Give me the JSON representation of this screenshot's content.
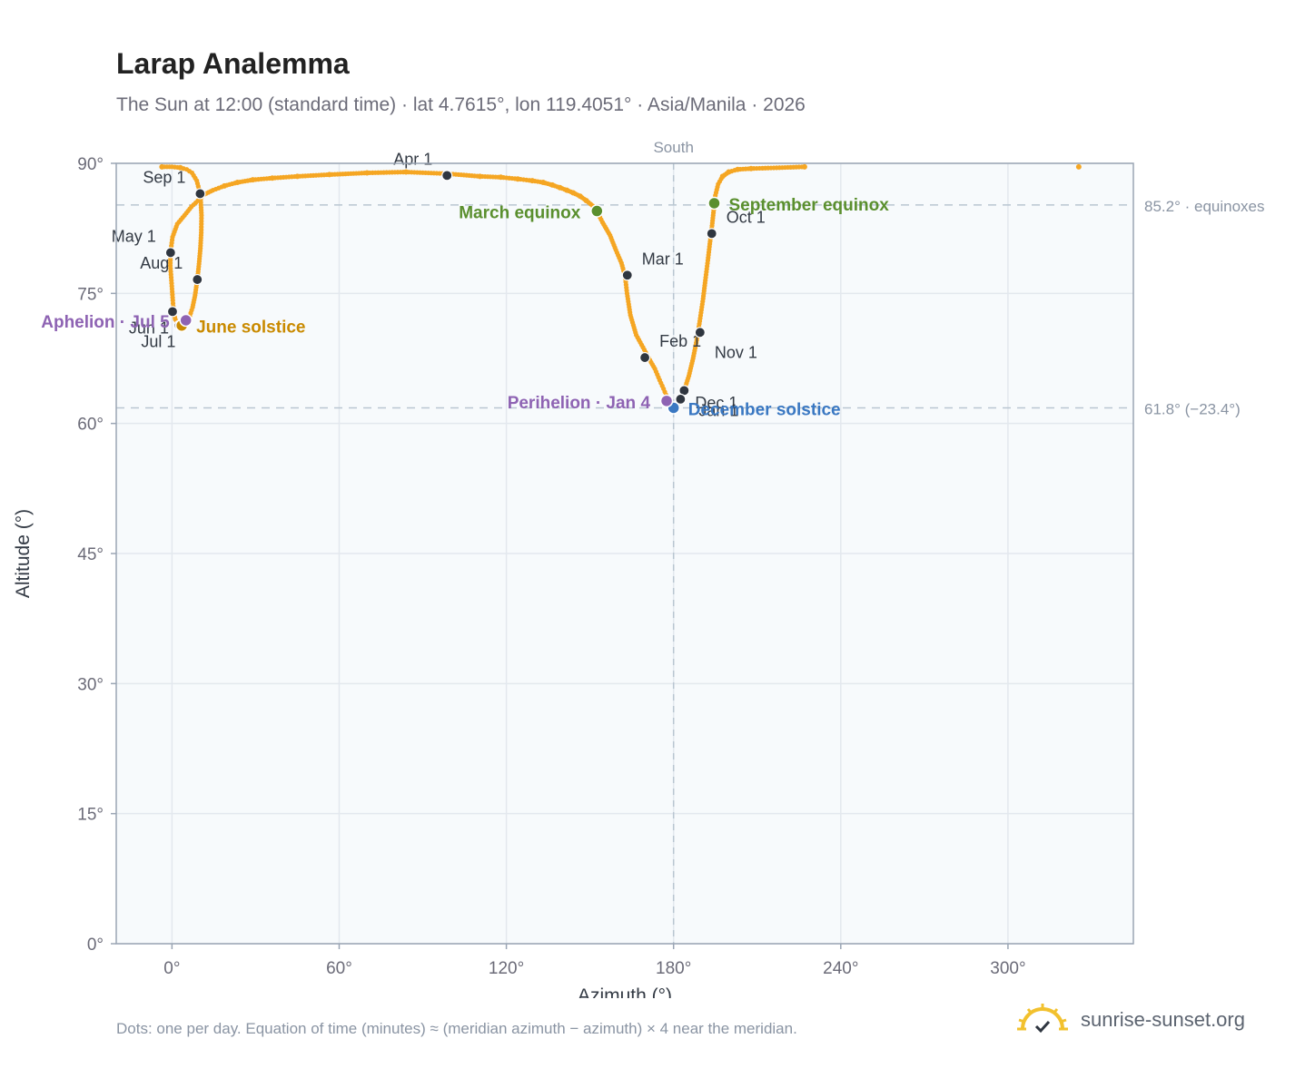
{
  "title": "Larap Analemma",
  "subtitle": "The Sun at 12:00 (standard time) · lat 4.7615°, lon 119.4051° · Asia/Manila · 2026",
  "footnote": "Dots: one per day. Equation of time (minutes) ≈ (meridian azimuth − azimuth) × 4 near the meridian.",
  "brand": {
    "name": "sunrise-sunset.org",
    "icon": "sun-check-icon"
  },
  "colors": {
    "analemma": "#f5a623",
    "month_marker": "#2f3640",
    "equinox": "#5a8f2e",
    "june_solstice": "#c98a00",
    "december_solstice": "#3a78c2",
    "apsis": "#8e63b3",
    "plot_bg": "#f7fafc",
    "grid": "#e3e8ee",
    "reference_line": "#b9c6d1"
  },
  "chart_data": {
    "type": "scatter",
    "xlabel": "Azimuth (°)",
    "ylabel": "Altitude (°)",
    "xlim": [
      -20,
      345
    ],
    "ylim": [
      0,
      90
    ],
    "xticks": [
      0,
      60,
      120,
      180,
      240,
      300
    ],
    "xtick_labels": [
      "0°",
      "60°",
      "120°",
      "180°",
      "240°",
      "300°"
    ],
    "yticks": [
      0,
      15,
      30,
      45,
      60,
      75,
      90
    ],
    "ytick_labels": [
      "0°",
      "15°",
      "30°",
      "45°",
      "60°",
      "75°",
      "90°"
    ],
    "grid": true,
    "vertical_reference": {
      "x": 180,
      "label": "South"
    },
    "horizontal_references": [
      {
        "y": 85.2,
        "label": "85.2° · equinoxes"
      },
      {
        "y": 61.8,
        "label": "61.8° (−23.4°)"
      }
    ],
    "daily_path": [
      [
        180,
        61.8
      ],
      [
        179,
        62.3
      ],
      [
        178.2,
        62.8
      ],
      [
        177.3,
        63.3
      ],
      [
        176.4,
        64
      ],
      [
        175,
        65
      ],
      [
        173.3,
        66.3
      ],
      [
        171.5,
        67.3
      ],
      [
        169.5,
        68.5
      ],
      [
        166.6,
        70.2
      ],
      [
        164.5,
        72.5
      ],
      [
        163.3,
        75
      ],
      [
        162.6,
        77
      ],
      [
        161.3,
        78.5
      ],
      [
        159.3,
        80
      ],
      [
        157.2,
        81.7
      ],
      [
        154.5,
        83.2
      ],
      [
        152.6,
        84.4
      ],
      [
        151,
        85.1
      ],
      [
        148.7,
        85.7
      ],
      [
        146.5,
        86.2
      ],
      [
        144,
        86.6
      ],
      [
        141.7,
        86.9
      ],
      [
        139.2,
        87.2
      ],
      [
        136.5,
        87.5
      ],
      [
        133.2,
        87.8
      ],
      [
        129.3,
        88
      ],
      [
        124.1,
        88.2
      ],
      [
        118,
        88.4
      ],
      [
        110.5,
        88.5
      ],
      [
        99,
        88.8
      ],
      [
        84,
        89
      ],
      [
        70,
        88.9
      ],
      [
        56.5,
        88.7
      ],
      [
        45,
        88.5
      ],
      [
        36,
        88.3
      ],
      [
        29,
        88.1
      ],
      [
        23.5,
        87.8
      ],
      [
        18.8,
        87.4
      ],
      [
        14.7,
        86.9
      ],
      [
        11.5,
        86.4
      ],
      [
        9.3,
        85.7
      ],
      [
        7,
        85
      ],
      [
        4.5,
        84
      ],
      [
        1.9,
        83
      ],
      [
        0.2,
        81.5
      ],
      [
        -0.5,
        79.8
      ],
      [
        -0.6,
        78.2
      ],
      [
        -0.2,
        76.5
      ],
      [
        0.3,
        74.2
      ],
      [
        0.6,
        72.8
      ],
      [
        1.2,
        72
      ],
      [
        2.2,
        71.4
      ],
      [
        3.4,
        71.2
      ],
      [
        4.7,
        71.5
      ],
      [
        5.5,
        71.9
      ],
      [
        6.4,
        72.4
      ],
      [
        7.4,
        73.4
      ],
      [
        8.3,
        74.8
      ],
      [
        9.1,
        76.6
      ],
      [
        9.7,
        78.4
      ],
      [
        10.2,
        80.2
      ],
      [
        10.5,
        82
      ],
      [
        10.6,
        84
      ],
      [
        10.2,
        86.4
      ],
      [
        8.9,
        88
      ],
      [
        7.2,
        88.9
      ],
      [
        5.3,
        89.3
      ],
      [
        3,
        89.5
      ],
      [
        0,
        89.6
      ],
      [
        -3.6,
        89.6
      ],
      [
        227,
        89.6
      ],
      [
        218,
        89.5
      ],
      [
        207.8,
        89.4
      ],
      [
        203,
        89.3
      ],
      [
        199.8,
        89
      ],
      [
        197.6,
        88.5
      ],
      [
        196,
        87.6
      ],
      [
        195,
        86.3
      ],
      [
        194.6,
        85.2
      ],
      [
        194.2,
        84
      ],
      [
        193.7,
        82.5
      ],
      [
        193,
        80.7
      ],
      [
        192.3,
        78.8
      ],
      [
        191.4,
        76.5
      ],
      [
        190.6,
        74.4
      ],
      [
        189.4,
        71.8
      ],
      [
        188.3,
        69.6
      ],
      [
        187,
        67.5
      ],
      [
        185.5,
        65.5
      ],
      [
        183.8,
        63.8
      ],
      [
        182.5,
        62.8
      ],
      [
        181.2,
        62.1
      ],
      [
        180,
        61.8
      ],
      [
        325.4,
        89.6
      ]
    ],
    "sparse_points": [
      [
        84,
        89
      ],
      [
        70,
        88.9
      ],
      [
        56.5,
        88.7
      ],
      [
        45,
        88.5
      ],
      [
        36,
        88.3
      ],
      [
        29,
        88.1
      ],
      [
        23.5,
        87.8
      ],
      [
        18.8,
        87.4
      ],
      [
        110.5,
        88.5
      ],
      [
        118,
        88.4
      ],
      [
        124.1,
        88.2
      ],
      [
        129.3,
        88
      ],
      [
        133.2,
        87.8
      ],
      [
        136.5,
        87.5
      ],
      [
        139.2,
        87.2
      ],
      [
        141.7,
        86.9
      ],
      [
        144,
        86.6
      ],
      [
        146.5,
        86.2
      ],
      [
        148.7,
        85.7
      ],
      [
        -3.6,
        89.6
      ],
      [
        3,
        89.5
      ],
      [
        227,
        89.6
      ],
      [
        207.8,
        89.4
      ],
      [
        203,
        89.3
      ],
      [
        199.8,
        89
      ],
      [
        197.6,
        88.5
      ],
      [
        325.4,
        89.6
      ]
    ],
    "month_markers": [
      {
        "label": "Jan 1",
        "x": 183.8,
        "y": 63.8,
        "anchor": "below-right"
      },
      {
        "label": "Feb 1",
        "x": 169.7,
        "y": 67.6,
        "anchor": "above-right"
      },
      {
        "label": "Mar 1",
        "x": 163.4,
        "y": 77.1,
        "anchor": "above-right"
      },
      {
        "label": "Apr 1",
        "x": 98.7,
        "y": 88.6,
        "anchor": "above-left"
      },
      {
        "label": "May 1",
        "x": -0.5,
        "y": 79.7,
        "anchor": "above-left"
      },
      {
        "label": "Jun 1",
        "x": 0.2,
        "y": 72.9,
        "anchor": "below-left"
      },
      {
        "label": "Jul 1",
        "x": 2.6,
        "y": 71.3,
        "anchor": "below-left"
      },
      {
        "label": "Aug 1",
        "x": 9.1,
        "y": 76.6,
        "anchor": "above-left"
      },
      {
        "label": "Sep 1",
        "x": 10.1,
        "y": 86.5,
        "anchor": "above-left"
      },
      {
        "label": "Oct 1",
        "x": 193.7,
        "y": 81.9,
        "anchor": "above-right"
      },
      {
        "label": "Nov 1",
        "x": 189.5,
        "y": 70.5,
        "anchor": "below-right"
      },
      {
        "label": "Dec 1",
        "x": 182.5,
        "y": 62.8,
        "anchor": "right"
      }
    ],
    "special_events": [
      {
        "label": "March equinox",
        "x": 152.5,
        "y": 84.5,
        "color_key": "equinox",
        "anchor": "left"
      },
      {
        "label": "September equinox",
        "x": 194.6,
        "y": 85.4,
        "color_key": "equinox",
        "anchor": "right"
      },
      {
        "label": "June solstice",
        "x": 3.5,
        "y": 71.3,
        "color_key": "june_solstice",
        "anchor": "right"
      },
      {
        "label": "December solstice",
        "x": 180,
        "y": 61.8,
        "color_key": "december_solstice",
        "anchor": "right"
      },
      {
        "label": "Aphelion · Jul 5",
        "x": 5,
        "y": 71.9,
        "color_key": "apsis",
        "anchor": "left"
      },
      {
        "label": "Perihelion · Jan 4",
        "x": 177.5,
        "y": 62.6,
        "color_key": "apsis",
        "anchor": "left"
      }
    ]
  }
}
